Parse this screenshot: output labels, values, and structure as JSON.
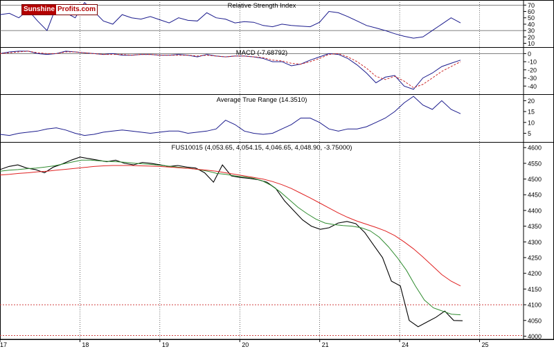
{
  "logo": {
    "part1": "Sunshine",
    "part2": "Profits.com"
  },
  "colors": {
    "price": "#000000",
    "ma_short": "#2e8b2e",
    "ma_long": "#e02020",
    "indicator": "#1a1a8c",
    "signal": "#cc2a2a",
    "hline": "#d04040",
    "grid": "#000000",
    "axis_text": "#000000"
  },
  "chart_data": [
    {
      "type": "line",
      "title": "Relative Strength Index",
      "y_ticks": [
        10,
        20,
        30,
        40,
        50,
        60,
        70
      ],
      "ylim": [
        4,
        78
      ],
      "reference_lines": [
        30,
        70
      ],
      "series": [
        {
          "values": [
            55,
            57,
            50,
            62,
            45,
            30,
            68,
            58,
            50,
            74,
            60,
            45,
            40,
            55,
            50,
            48,
            52,
            47,
            42,
            50,
            46,
            45,
            58,
            50,
            48,
            42,
            44,
            43,
            38,
            36,
            40,
            38,
            37,
            36,
            43,
            60,
            58,
            52,
            45,
            38,
            34,
            30,
            25,
            21,
            18,
            20,
            30,
            40,
            50,
            42
          ]
        }
      ]
    },
    {
      "type": "line",
      "title": "MACD (-7.68792)",
      "y_ticks": [
        -40,
        -30,
        -20,
        -10,
        0
      ],
      "ylim": [
        -50,
        8
      ],
      "reference_lines": [
        0
      ],
      "series": [
        {
          "values": [
            0,
            2,
            3,
            3,
            0,
            -1,
            0,
            3,
            2,
            1,
            0,
            -1,
            0,
            -2,
            -2,
            -1,
            -1,
            -2,
            -2,
            -1,
            -2,
            -4,
            -1,
            -3,
            -4,
            -3,
            -3,
            -4,
            -6,
            -10,
            -10,
            -15,
            -13,
            -8,
            -4,
            0,
            -1,
            -6,
            -14,
            -24,
            -36,
            -29,
            -27,
            -40,
            -44,
            -30,
            -24,
            -16,
            -12,
            -8
          ]
        },
        {
          "values": [
            0,
            1,
            2,
            3,
            1,
            0,
            0,
            2,
            2,
            1,
            0,
            -1,
            -1,
            -1,
            -2,
            -1,
            -1,
            -2,
            -2,
            -2,
            -2,
            -3,
            -2,
            -3,
            -4,
            -3,
            -3,
            -4,
            -5,
            -8,
            -9,
            -12,
            -13,
            -10,
            -6,
            -1,
            0,
            -4,
            -10,
            -18,
            -28,
            -32,
            -28,
            -34,
            -42,
            -38,
            -30,
            -22,
            -16,
            -10
          ]
        }
      ]
    },
    {
      "type": "line",
      "title": "Average True Range (14.3510)",
      "y_ticks": [
        5,
        10,
        15,
        20
      ],
      "ylim": [
        1,
        23
      ],
      "series": [
        {
          "values": [
            4.5,
            4,
            5,
            5.5,
            6,
            7,
            7.5,
            6.5,
            5,
            4,
            4.5,
            5.5,
            6,
            6.5,
            6,
            5.5,
            5,
            5.5,
            6,
            6,
            5,
            5.5,
            6,
            7,
            11,
            9,
            6,
            5,
            4.5,
            5,
            7,
            9,
            12,
            12,
            10,
            7,
            6,
            7,
            7,
            8,
            10,
            12,
            15,
            19,
            22,
            18,
            16,
            20,
            16,
            14
          ]
        }
      ]
    },
    {
      "type": "line",
      "title": "FUS10015 (4,053.65, 4,054.15, 4,046.65, 4,048.90, -3.75000)",
      "y_ticks": [
        4000,
        4050,
        4100,
        4150,
        4200,
        4250,
        4300,
        4350,
        4400,
        4450,
        4500,
        4550,
        4600
      ],
      "ylim": [
        3990,
        4618
      ],
      "reference_lines": [
        4100,
        4002
      ],
      "x_ticks": [
        {
          "label": "17",
          "at": 0
        },
        {
          "label": "18",
          "at": 10
        },
        {
          "label": "19",
          "at": 20
        },
        {
          "label": "20",
          "at": 30
        },
        {
          "label": "21",
          "at": 40
        },
        {
          "label": "24",
          "at": 50
        },
        {
          "label": "25",
          "at": 60
        }
      ],
      "xlim": [
        0,
        65.5
      ],
      "series": [
        {
          "values": [
            4530,
            4540,
            4545,
            4535,
            4530,
            4520,
            4538,
            4548,
            4560,
            4570,
            4565,
            4560,
            4555,
            4560,
            4550,
            4545,
            4553,
            4550,
            4545,
            4540,
            4543,
            4538,
            4535,
            4520,
            4490,
            4545,
            4510,
            4505,
            4502,
            4498,
            4490,
            4470,
            4430,
            4400,
            4370,
            4350,
            4340,
            4345,
            4360,
            4365,
            4358,
            4330,
            4290,
            4250,
            4175,
            4160,
            4050,
            4030,
            4045,
            4060,
            4080,
            4050,
            4049
          ]
        },
        {
          "values": [
            4525,
            4528,
            4530,
            4533,
            4535,
            4538,
            4542,
            4548,
            4554,
            4560,
            4560,
            4558,
            4556,
            4555,
            4553,
            4550,
            4548,
            4546,
            4543,
            4540,
            4537,
            4534,
            4530,
            4525,
            4518,
            4515,
            4510,
            4507,
            4503,
            4495,
            4480,
            4460,
            4435,
            4410,
            4390,
            4372,
            4360,
            4355,
            4352,
            4350,
            4345,
            4335,
            4315,
            4285,
            4250,
            4210,
            4160,
            4115,
            4090,
            4080,
            4070,
            4068
          ]
        },
        {
          "values": [
            4513,
            4515,
            4518,
            4520,
            4523,
            4525,
            4528,
            4531,
            4534,
            4537,
            4540,
            4542,
            4543,
            4543,
            4543,
            4542,
            4541,
            4540,
            4538,
            4536,
            4534,
            4531,
            4528,
            4525,
            4520,
            4515,
            4510,
            4505,
            4500,
            4492,
            4482,
            4470,
            4455,
            4440,
            4424,
            4408,
            4392,
            4378,
            4366,
            4356,
            4346,
            4335,
            4320,
            4300,
            4278,
            4252,
            4224,
            4196,
            4175,
            4160
          ]
        }
      ]
    }
  ]
}
